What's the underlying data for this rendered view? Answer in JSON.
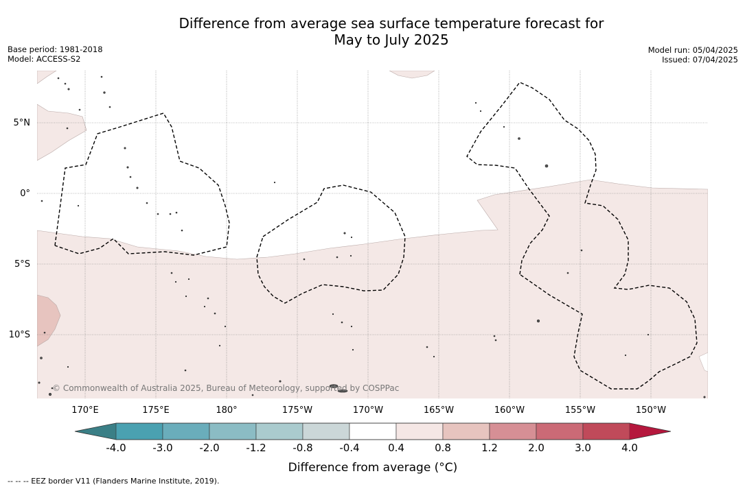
{
  "title_line1": "Difference from average sea surface temperature forecast for",
  "title_line2": "May to July 2025",
  "meta_left": {
    "base_period": "Base period: 1981-2018",
    "model": "Model: ACCESS-S2"
  },
  "meta_right": {
    "model_run": "Model run: 05/04/2025",
    "issued": "Issued: 07/04/2025"
  },
  "map": {
    "lat_labels": [
      "5°N",
      "0°",
      "5°S",
      "10°S"
    ],
    "lon_labels": [
      "170°E",
      "175°E",
      "180°",
      "175°W",
      "170°W",
      "165°W",
      "160°W",
      "155°W",
      "150°W"
    ],
    "copyright": "© Commonwealth of Australia 2025, Bureau of Meteorology, supported by COSPPac"
  },
  "colorbar": {
    "tick_labels": [
      "-4.0",
      "-3.0",
      "-2.0",
      "-1.2",
      "-0.8",
      "-0.4",
      "0.4",
      "0.8",
      "1.2",
      "2.0",
      "3.0",
      "4.0"
    ],
    "colors": [
      "#4aa1b1",
      "#6aadbb",
      "#8bbcc4",
      "#aacbce",
      "#cbd7d8",
      "#ffffff",
      "#f5e7e5",
      "#e7c4bf",
      "#d68f95",
      "#cb6a76",
      "#c04a5a"
    ],
    "under_color": "#3a7f86",
    "over_color": "#b5173d",
    "label": "Difference from average (°C)"
  },
  "colors": {
    "anomaly_04_08": "#f4e8e6",
    "anomaly_08_12": "#e7c4bf",
    "land": "#555555",
    "eez_line": "#000000",
    "grid": "#666666"
  },
  "footer_note": "--  --  -- EEZ border V11 (Flanders Marine Institute, 2019)."
}
